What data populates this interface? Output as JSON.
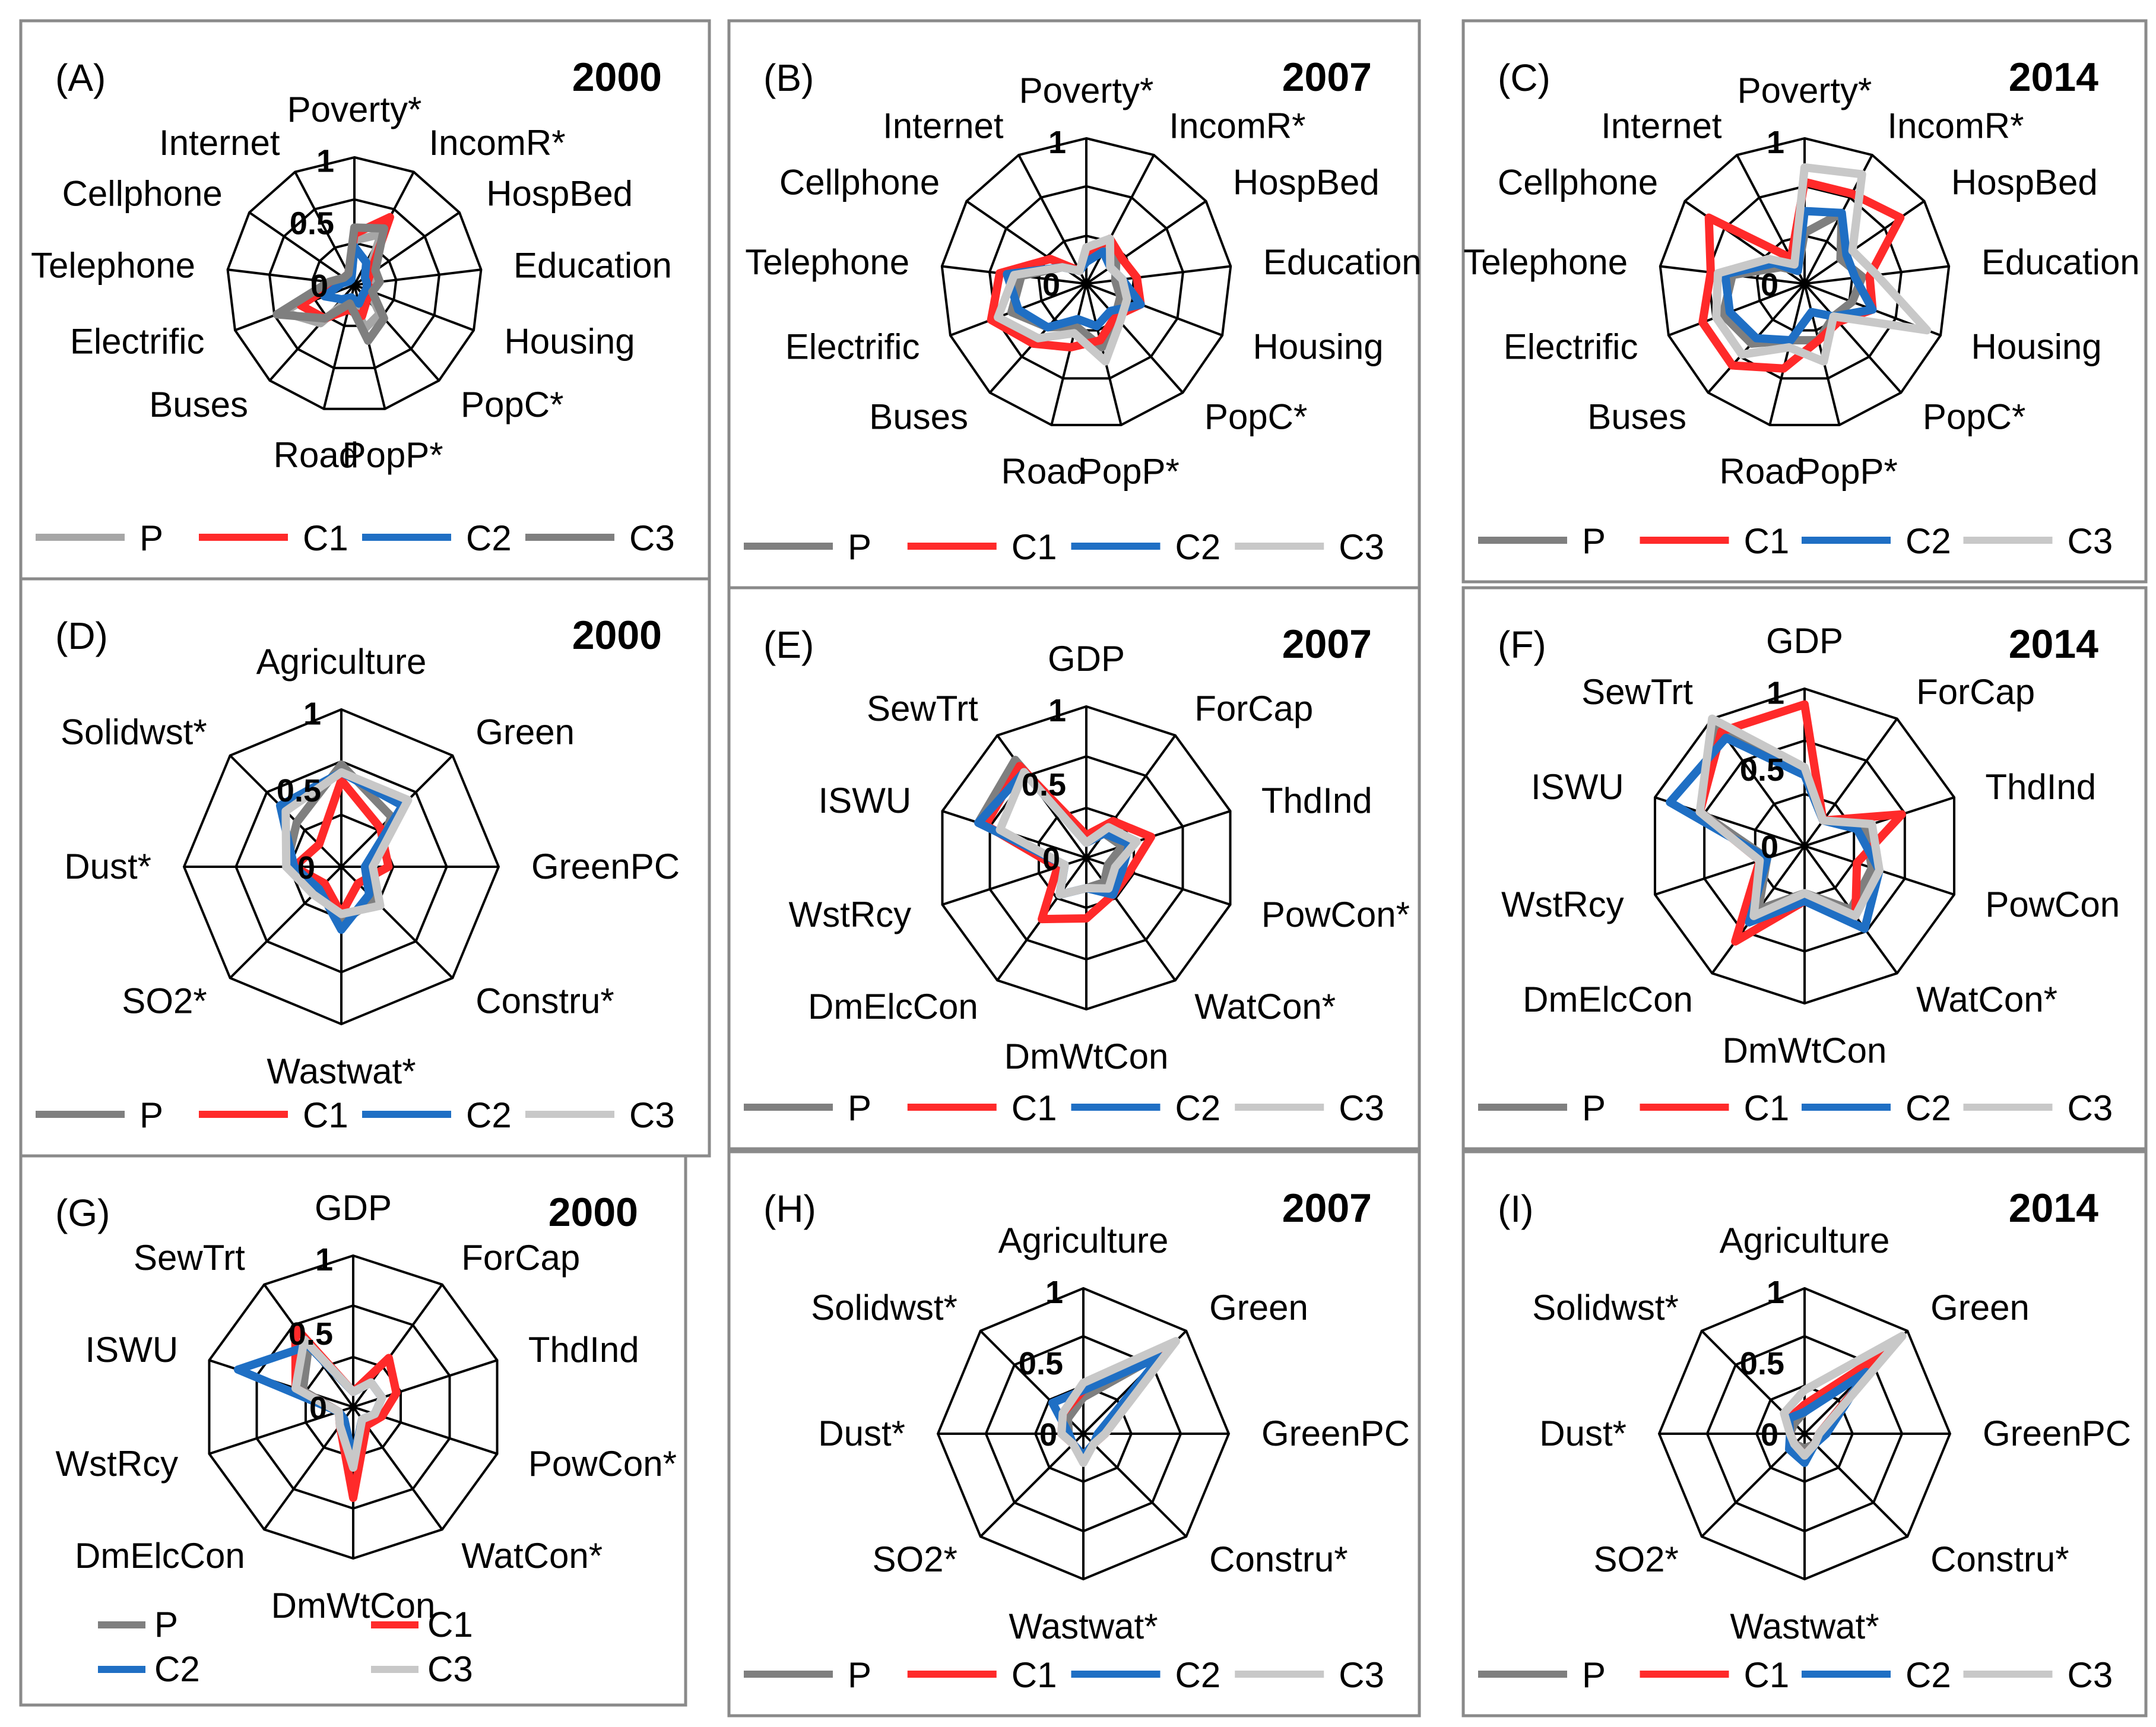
{
  "colors": {
    "P_dark": "#7f7f7f",
    "P_light": "#a6a6a6",
    "C1": "#ff2a2a",
    "C2": "#1f6fc4",
    "C3_light": "#c8c8c8",
    "C3_dark": "#7f7f7f"
  },
  "chart_data": [
    {
      "id": "A",
      "type": "radar",
      "label": "(A)",
      "year": "2000",
      "axes": [
        "Poverty*",
        "IncomR*",
        "HospBed",
        "Education",
        "Housing",
        "PopC*",
        "PopP*",
        "Road",
        "Buses",
        "Electrific",
        "Telephone",
        "Cellphone",
        "Internet"
      ],
      "ticks": [
        "0",
        "0.5",
        "1"
      ],
      "rlim": [
        0,
        1
      ],
      "legend": [
        "P",
        "C1",
        "C2",
        "C3"
      ],
      "series": [
        {
          "name": "P",
          "color": "#a6a6a6",
          "values": [
            0.35,
            0.45,
            0.12,
            0.15,
            0.12,
            0.3,
            0.35,
            0.1,
            0.4,
            0.6,
            0.15,
            0.1,
            0.1
          ]
        },
        {
          "name": "C1",
          "color": "#ff2a2a",
          "values": [
            0.4,
            0.6,
            0.15,
            0.1,
            0.15,
            0.15,
            0.25,
            0.2,
            0.35,
            0.45,
            0.15,
            0.1,
            0.1
          ]
        },
        {
          "name": "C2",
          "color": "#1f6fc4",
          "values": [
            0.3,
            0.2,
            0.1,
            0.1,
            0.1,
            0.1,
            0.15,
            0.1,
            0.15,
            0.25,
            0.1,
            0.05,
            0.05
          ]
        },
        {
          "name": "C3",
          "color": "#7f7f7f",
          "values": [
            0.45,
            0.5,
            0.2,
            0.2,
            0.15,
            0.35,
            0.45,
            0.15,
            0.35,
            0.65,
            0.2,
            0.1,
            0.1
          ]
        }
      ]
    },
    {
      "id": "B",
      "type": "radar",
      "label": "(B)",
      "year": "2007",
      "axes": [
        "Poverty*",
        "IncomR*",
        "HospBed",
        "Education",
        "Housing",
        "PopC*",
        "PopP*",
        "Road",
        "Buses",
        "Electrific",
        "Telephone",
        "Cellphone",
        "Internet"
      ],
      "ticks": [
        "0",
        "1"
      ],
      "rlim": [
        0,
        1
      ],
      "legend": [
        "P",
        "C1",
        "C2",
        "C3"
      ],
      "series": [
        {
          "name": "P",
          "color": "#7f7f7f",
          "values": [
            0.15,
            0.3,
            0.25,
            0.2,
            0.25,
            0.3,
            0.45,
            0.3,
            0.4,
            0.55,
            0.45,
            0.2,
            0.1
          ]
        },
        {
          "name": "C1",
          "color": "#ff2a2a",
          "values": [
            0.2,
            0.35,
            0.3,
            0.35,
            0.4,
            0.3,
            0.4,
            0.45,
            0.55,
            0.7,
            0.6,
            0.3,
            0.1
          ]
        },
        {
          "name": "C2",
          "color": "#1f6fc4",
          "values": [
            0.15,
            0.25,
            0.2,
            0.25,
            0.4,
            0.25,
            0.3,
            0.25,
            0.4,
            0.5,
            0.55,
            0.2,
            0.1
          ]
        },
        {
          "name": "C3",
          "color": "#c8c8c8",
          "values": [
            0.25,
            0.35,
            0.2,
            0.25,
            0.3,
            0.35,
            0.55,
            0.35,
            0.5,
            0.65,
            0.5,
            0.2,
            0.1
          ]
        }
      ]
    },
    {
      "id": "C",
      "type": "radar",
      "label": "(C)",
      "year": "2014",
      "axes": [
        "Poverty*",
        "IncomR*",
        "HospBed",
        "Education",
        "Housing",
        "PopC*",
        "PopP*",
        "Road",
        "Buses",
        "Electrific",
        "Telephone",
        "Cellphone",
        "Internet"
      ],
      "ticks": [
        "0",
        "1"
      ],
      "rlim": [
        0,
        1
      ],
      "legend": [
        "P",
        "C1",
        "C2",
        "C3"
      ],
      "series": [
        {
          "name": "P",
          "color": "#7f7f7f",
          "values": [
            0.35,
            0.55,
            0.3,
            0.4,
            0.35,
            0.3,
            0.4,
            0.4,
            0.55,
            0.6,
            0.5,
            0.2,
            0.1
          ]
        },
        {
          "name": "C1",
          "color": "#ff2a2a",
          "values": [
            0.7,
            0.7,
            0.8,
            0.45,
            0.5,
            0.35,
            0.4,
            0.6,
            0.75,
            0.75,
            0.65,
            0.8,
            0.2
          ]
        },
        {
          "name": "C2",
          "color": "#1f6fc4",
          "values": [
            0.5,
            0.55,
            0.35,
            0.35,
            0.5,
            0.3,
            0.2,
            0.4,
            0.5,
            0.55,
            0.55,
            0.25,
            0.1
          ]
        },
        {
          "name": "C3",
          "color": "#c8c8c8",
          "values": [
            0.8,
            0.85,
            0.4,
            0.5,
            0.9,
            0.3,
            0.55,
            0.45,
            0.65,
            0.65,
            0.6,
            0.3,
            0.15
          ]
        }
      ]
    },
    {
      "id": "D",
      "type": "radar",
      "label": "(D)",
      "year": "2000",
      "axes": [
        "Agriculture",
        "Green",
        "GreenPC",
        "Constru*",
        "Wastwat*",
        "SO2*",
        "Dust*",
        "Solidwst*"
      ],
      "ticks": [
        "0",
        "0.5",
        "1"
      ],
      "rlim": [
        0,
        1
      ],
      "legend": [
        "P",
        "C1",
        "C2",
        "C3"
      ],
      "series": [
        {
          "name": "P",
          "color": "#7f7f7f",
          "values": [
            0.65,
            0.45,
            0.2,
            0.3,
            0.35,
            0.2,
            0.35,
            0.4
          ]
        },
        {
          "name": "C1",
          "color": "#ff2a2a",
          "values": [
            0.55,
            0.35,
            0.3,
            0.15,
            0.3,
            0.15,
            0.3,
            0.2
          ]
        },
        {
          "name": "C2",
          "color": "#1f6fc4",
          "values": [
            0.6,
            0.55,
            0.15,
            0.25,
            0.4,
            0.2,
            0.3,
            0.55
          ]
        },
        {
          "name": "C3",
          "color": "#c8c8c8",
          "values": [
            0.6,
            0.6,
            0.2,
            0.35,
            0.3,
            0.25,
            0.35,
            0.5
          ]
        }
      ]
    },
    {
      "id": "E",
      "type": "radar",
      "label": "(E)",
      "year": "2007",
      "axes": [
        "GDP",
        "ForCap",
        "ThdInd",
        "PowCon*",
        "WatCon*",
        "DmWtCon",
        "DmElcCon",
        "WstRcy",
        "ISWU",
        "SewTrt"
      ],
      "ticks": [
        "0",
        "0.5",
        "1"
      ],
      "rlim": [
        0,
        1
      ],
      "legend": [
        "P",
        "C1",
        "C2",
        "C3"
      ],
      "series": [
        {
          "name": "P",
          "color": "#7f7f7f",
          "values": [
            0.1,
            0.2,
            0.25,
            0.15,
            0.2,
            0.2,
            0.3,
            0.15,
            0.75,
            0.8
          ]
        },
        {
          "name": "C1",
          "color": "#ff2a2a",
          "values": [
            0.15,
            0.3,
            0.45,
            0.3,
            0.3,
            0.4,
            0.5,
            0.2,
            0.7,
            0.75
          ]
        },
        {
          "name": "C2",
          "color": "#1f6fc4",
          "values": [
            0.1,
            0.2,
            0.3,
            0.25,
            0.3,
            0.2,
            0.3,
            0.15,
            0.75,
            0.7
          ]
        },
        {
          "name": "C3",
          "color": "#c8c8c8",
          "values": [
            0.1,
            0.25,
            0.35,
            0.2,
            0.25,
            0.2,
            0.3,
            0.15,
            0.6,
            0.7
          ]
        }
      ]
    },
    {
      "id": "F",
      "type": "radar",
      "label": "(F)",
      "year": "2014",
      "axes": [
        "GDP",
        "ForCap",
        "ThdInd",
        "PowCon",
        "WatCon*",
        "DmWtCon",
        "DmElcCon",
        "WstRcy",
        "ISWU",
        "SewTrt"
      ],
      "ticks": [
        "0",
        "0.5",
        "1"
      ],
      "rlim": [
        0,
        1
      ],
      "legend": [
        "P",
        "C1",
        "C2",
        "C3"
      ],
      "series": [
        {
          "name": "P",
          "color": "#7f7f7f",
          "values": [
            0.45,
            0.2,
            0.4,
            0.45,
            0.5,
            0.3,
            0.5,
            0.25,
            0.7,
            0.95
          ]
        },
        {
          "name": "C1",
          "color": "#ff2a2a",
          "values": [
            0.9,
            0.2,
            0.65,
            0.35,
            0.55,
            0.35,
            0.75,
            0.3,
            0.7,
            0.9
          ]
        },
        {
          "name": "C2",
          "color": "#1f6fc4",
          "values": [
            0.45,
            0.2,
            0.35,
            0.5,
            0.65,
            0.35,
            0.6,
            0.25,
            0.9,
            0.85
          ]
        },
        {
          "name": "C3",
          "color": "#c8c8c8",
          "values": [
            0.5,
            0.2,
            0.45,
            0.5,
            0.55,
            0.3,
            0.55,
            0.3,
            0.7,
            1.0
          ]
        }
      ]
    },
    {
      "id": "G",
      "type": "radar",
      "label": "(G)",
      "year": "2000",
      "axes": [
        "GDP",
        "ForCap",
        "ThdInd",
        "PowCon*",
        "WatCon*",
        "DmWtCon",
        "DmElcCon",
        "WstRcy",
        "ISWU",
        "SewTrt"
      ],
      "ticks": [
        "0",
        "0.5",
        "1"
      ],
      "rlim": [
        0,
        1
      ],
      "legend": [
        "P",
        "C1",
        "C2",
        "C3"
      ],
      "series": [
        {
          "name": "P",
          "color": "#7f7f7f",
          "values": [
            0.1,
            0.2,
            0.2,
            0.15,
            0.1,
            0.35,
            0.1,
            0.1,
            0.35,
            0.5
          ]
        },
        {
          "name": "C1",
          "color": "#ff2a2a",
          "values": [
            0.1,
            0.4,
            0.3,
            0.2,
            0.15,
            0.6,
            0.15,
            0.1,
            0.4,
            0.65
          ]
        },
        {
          "name": "C2",
          "color": "#1f6fc4",
          "values": [
            0.1,
            0.2,
            0.2,
            0.15,
            0.1,
            0.35,
            0.1,
            0.1,
            0.8,
            0.5
          ]
        },
        {
          "name": "C3",
          "color": "#c8c8c8",
          "values": [
            0.1,
            0.2,
            0.2,
            0.15,
            0.1,
            0.4,
            0.15,
            0.1,
            0.4,
            0.55
          ]
        }
      ]
    },
    {
      "id": "H",
      "type": "radar",
      "label": "(H)",
      "year": "2007",
      "axes": [
        "Agriculture",
        "Green",
        "GreenPC",
        "Constru*",
        "Wastwat*",
        "SO2*",
        "Dust*",
        "Solidwst*"
      ],
      "ticks": [
        "0",
        "0.5",
        "1"
      ],
      "rlim": [
        0,
        1
      ],
      "legend": [
        "P",
        "C1",
        "C2",
        "C3"
      ],
      "series": [
        {
          "name": "P",
          "color": "#7f7f7f",
          "values": [
            0.25,
            0.8,
            0.1,
            0.1,
            0.15,
            0.1,
            0.1,
            0.15
          ]
        },
        {
          "name": "C1",
          "color": "#ff2a2a",
          "values": [
            0.3,
            0.8,
            0.15,
            0.1,
            0.15,
            0.1,
            0.15,
            0.2
          ]
        },
        {
          "name": "C2",
          "color": "#1f6fc4",
          "values": [
            0.3,
            0.75,
            0.1,
            0.1,
            0.15,
            0.1,
            0.1,
            0.3
          ]
        },
        {
          "name": "C3",
          "color": "#c8c8c8",
          "values": [
            0.35,
            0.9,
            0.15,
            0.1,
            0.2,
            0.1,
            0.15,
            0.2
          ]
        }
      ]
    },
    {
      "id": "I",
      "type": "radar",
      "label": "(I)",
      "year": "2014",
      "axes": [
        "Agriculture",
        "Green",
        "GreenPC",
        "Constru*",
        "Wastwat*",
        "SO2*",
        "Dust*",
        "Solidwst*"
      ],
      "ticks": [
        "0",
        "0.5",
        "1"
      ],
      "rlim": [
        0,
        1
      ],
      "legend": [
        "P",
        "C1",
        "C2",
        "C3"
      ],
      "series": [
        {
          "name": "P",
          "color": "#7f7f7f",
          "values": [
            0.15,
            0.75,
            0.1,
            0.1,
            0.1,
            0.1,
            0.1,
            0.1
          ]
        },
        {
          "name": "C1",
          "color": "#ff2a2a",
          "values": [
            0.2,
            0.8,
            0.1,
            0.1,
            0.15,
            0.1,
            0.1,
            0.15
          ]
        },
        {
          "name": "C2",
          "color": "#1f6fc4",
          "values": [
            0.15,
            0.6,
            0.15,
            0.1,
            0.2,
            0.15,
            0.1,
            0.15
          ]
        },
        {
          "name": "C3",
          "color": "#c8c8c8",
          "values": [
            0.3,
            0.95,
            0.1,
            0.1,
            0.15,
            0.1,
            0.1,
            0.2
          ]
        }
      ]
    }
  ]
}
